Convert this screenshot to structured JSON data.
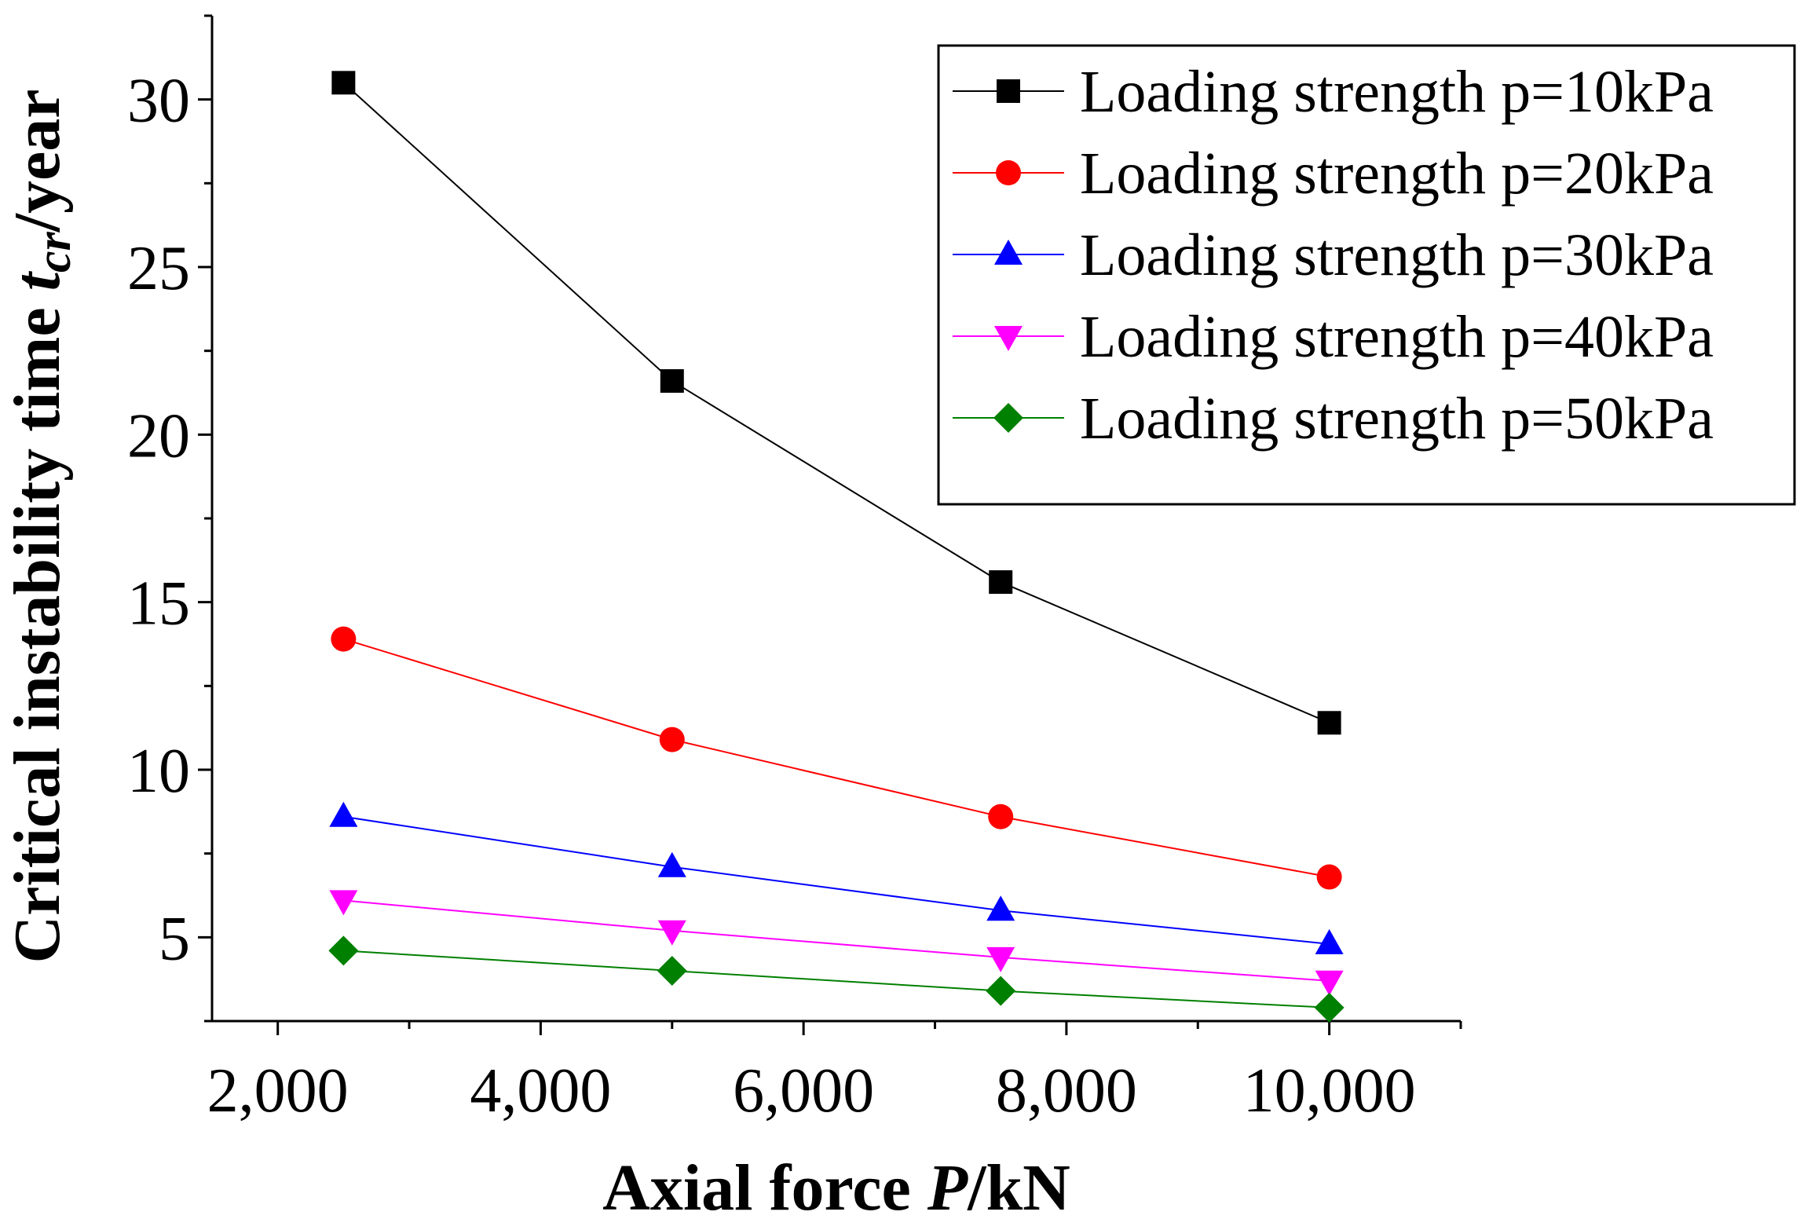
{
  "chart_data": {
    "type": "line",
    "title": "",
    "xlabel": {
      "prefix": "Axial force ",
      "var": "P",
      "suffix": "/kN"
    },
    "ylabel": {
      "prefix": "Critical instability time ",
      "var": "t",
      "sub": "cr",
      "suffix": "/year"
    },
    "xlim": [
      1500,
      11000
    ],
    "ylim": [
      2.5,
      32.5
    ],
    "xticks": [
      2000,
      4000,
      6000,
      8000,
      10000
    ],
    "xtick_labels": [
      "2,000",
      "4,000",
      "6,000",
      "8,000",
      "10,000"
    ],
    "yticks": [
      5,
      10,
      15,
      20,
      25,
      30
    ],
    "ytick_labels": [
      "5",
      "10",
      "15",
      "20",
      "25",
      "30"
    ],
    "grid": false,
    "legend_position": "top-right",
    "x": [
      2500,
      5000,
      7500,
      10000
    ],
    "series": [
      {
        "name": "Loading strength p=10kPa",
        "color": "#000000",
        "marker": "square",
        "values": [
          30.5,
          21.6,
          15.6,
          11.4
        ]
      },
      {
        "name": "Loading strength p=20kPa",
        "color": "#ff0000",
        "marker": "circle",
        "values": [
          13.9,
          10.9,
          8.6,
          6.8
        ]
      },
      {
        "name": "Loading strength p=30kPa",
        "color": "#0000ff",
        "marker": "triangle-up",
        "values": [
          8.6,
          7.1,
          5.8,
          4.8
        ]
      },
      {
        "name": "Loading strength p=40kPa",
        "color": "#ff00ff",
        "marker": "triangle-down",
        "values": [
          6.1,
          5.2,
          4.4,
          3.7
        ]
      },
      {
        "name": "Loading strength p=50kPa",
        "color": "#008000",
        "marker": "diamond",
        "values": [
          4.6,
          4.0,
          3.4,
          2.9
        ]
      }
    ]
  }
}
